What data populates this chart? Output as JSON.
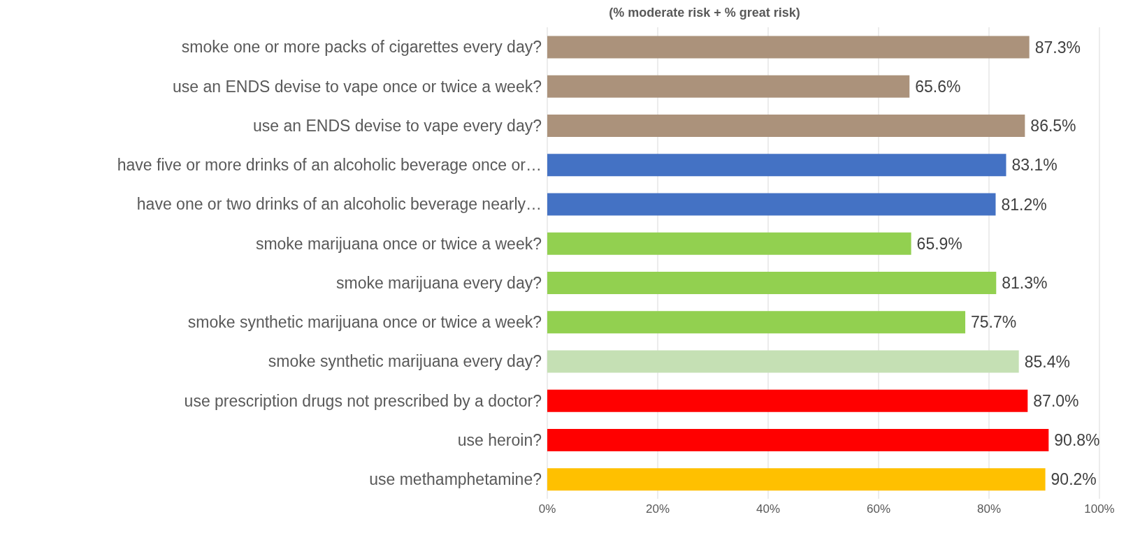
{
  "chart_data": {
    "type": "bar",
    "orientation": "horizontal",
    "subtitle": "(% moderate risk + % great risk)",
    "categories": [
      "smoke one or more packs of cigarettes every day?",
      "use an ENDS devise to vape once or twice a week?",
      "use an ENDS devise to vape every day?",
      "have five or more drinks of an alcoholic beverage once or…",
      "have one or two drinks of an alcoholic beverage nearly…",
      "smoke marijuana once or twice a week?",
      "smoke marijuana every day?",
      "smoke synthetic marijuana once or twice a week?",
      "smoke synthetic marijuana every day?",
      "use prescription drugs not prescribed by a doctor?",
      "use heroin?",
      "use methamphetamine?"
    ],
    "values": [
      87.3,
      65.6,
      86.5,
      83.1,
      81.2,
      65.9,
      81.3,
      75.7,
      85.4,
      87.0,
      90.8,
      90.2
    ],
    "value_labels": [
      "87.3%",
      "65.6%",
      "86.5%",
      "83.1%",
      "81.2%",
      "65.9%",
      "81.3%",
      "75.7%",
      "85.4%",
      "87.0%",
      "90.8%",
      "90.2%"
    ],
    "colors": [
      "#ab927b",
      "#ab927b",
      "#ab927b",
      "#4472c4",
      "#4472c4",
      "#92d050",
      "#92d050",
      "#92d050",
      "#c5e0b4",
      "#ff0000",
      "#ff0000",
      "#ffc000"
    ],
    "xlim": [
      0,
      100
    ],
    "xticks": [
      {
        "value": 0,
        "label": "0%"
      },
      {
        "value": 20,
        "label": "20%"
      },
      {
        "value": 40,
        "label": "40%"
      },
      {
        "value": 60,
        "label": "60%"
      },
      {
        "value": 80,
        "label": "80%"
      },
      {
        "value": 100,
        "label": "100%"
      }
    ],
    "grid": "x"
  }
}
